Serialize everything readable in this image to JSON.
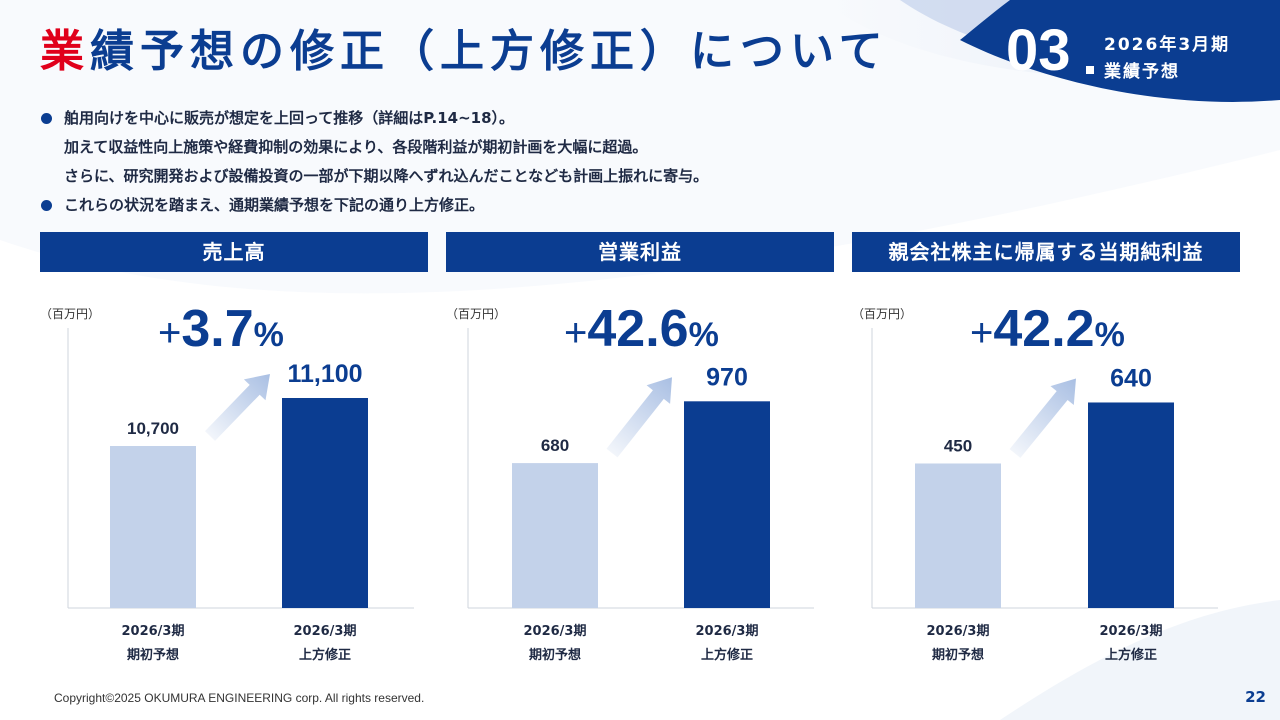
{
  "header": {
    "title_highlight": "業",
    "title_rest": "績予想の修正（上方修正）について",
    "section_number": "03",
    "section_line1": "2026年3月期",
    "section_line2": "業績予想"
  },
  "bullets": [
    {
      "has_dot": true,
      "text": "舶用向けを中心に販売が想定を上回って推移（詳細はP.14~18）。"
    },
    {
      "has_dot": false,
      "text": "加えて収益性向上施策や経費抑制の効果により、各段階利益が期初計画を大幅に超過。"
    },
    {
      "has_dot": false,
      "text": "さらに、研究開発および設備投資の一部が下期以降へずれ込んだことなども計画上振れに寄与。"
    },
    {
      "has_dot": true,
      "text": "これらの状況を踏まえ、通期業績予想を下記の通り上方修正。"
    }
  ],
  "colors": {
    "accent": "#0b3d91",
    "bar_initial": "#c3d2ea",
    "bar_revised": "#0b3d91",
    "title_red": "#e0001b",
    "arrow": "#a9bfe3"
  },
  "chart_data": [
    {
      "type": "bar",
      "title": "売上高",
      "unit": "（百万円）",
      "change": "+3.7%",
      "change_sign": "+",
      "change_number": "3.7",
      "change_pct": "%",
      "categories": [
        {
          "line1": "2026/3期",
          "line2": "期初予想"
        },
        {
          "line1": "2026/3期",
          "line2": "上方修正"
        }
      ],
      "values": [
        10700,
        11100
      ],
      "value_labels": [
        "10,700",
        "11,100"
      ],
      "ylim": [
        9350,
        11250
      ]
    },
    {
      "type": "bar",
      "title": "営業利益",
      "unit": "（百万円）",
      "change": "+42.6%",
      "change_sign": "+",
      "change_number": "42.6",
      "change_pct": "%",
      "categories": [
        {
          "line1": "2026/3期",
          "line2": "期初予想"
        },
        {
          "line1": "2026/3期",
          "line2": "上方修正"
        }
      ],
      "values": [
        680,
        970
      ],
      "value_labels": [
        "680",
        "970"
      ],
      "ylim": [
        0,
        1070
      ]
    },
    {
      "type": "bar",
      "title": "親会社株主に帰属する当期純利益",
      "unit": "（百万円）",
      "change": "+42.2%",
      "change_sign": "+",
      "change_number": "42.2",
      "change_pct": "%",
      "categories": [
        {
          "line1": "2026/3期",
          "line2": "期初予想"
        },
        {
          "line1": "2026/3期",
          "line2": "上方修正"
        }
      ],
      "values": [
        450,
        640
      ],
      "value_labels": [
        "450",
        "640"
      ],
      "ylim": [
        0,
        710
      ]
    }
  ],
  "footer": {
    "copyright": "Copyright©2025 OKUMURA ENGINEERING corp. All rights reserved.",
    "page_number": "22"
  }
}
